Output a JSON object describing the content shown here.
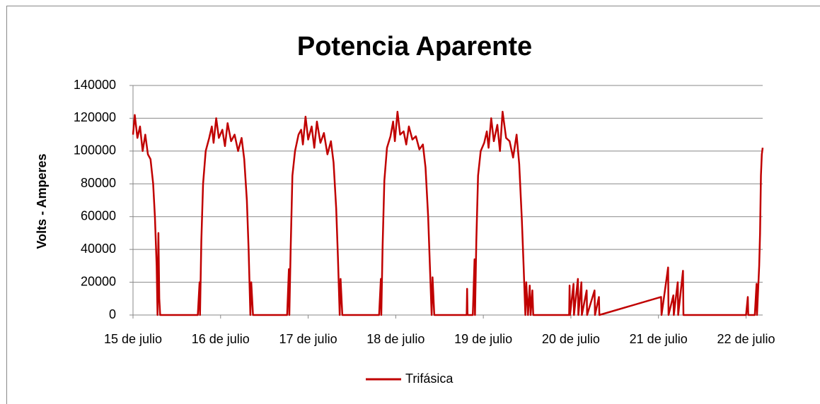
{
  "chart_data": {
    "type": "line",
    "title": "Potencia Aparente",
    "y_label": "Volts - Amperes",
    "x": [
      0,
      0.02,
      0.05,
      0.08,
      0.11,
      0.14,
      0.17,
      0.2,
      0.23,
      0.25,
      0.27,
      0.28,
      0.29,
      0.3,
      0.31,
      0.74,
      0.76,
      0.765,
      0.78,
      0.8,
      0.83,
      0.87,
      0.9,
      0.92,
      0.95,
      0.98,
      1.02,
      1.05,
      1.08,
      1.12,
      1.16,
      1.2,
      1.24,
      1.27,
      1.3,
      1.32,
      1.34,
      1.35,
      1.37,
      1.76,
      1.78,
      1.785,
      1.8,
      1.82,
      1.85,
      1.89,
      1.92,
      1.94,
      1.97,
      2,
      2.04,
      2.07,
      2.1,
      2.14,
      2.18,
      2.22,
      2.26,
      2.29,
      2.32,
      2.34,
      2.36,
      2.37,
      2.39,
      2.81,
      2.83,
      2.835,
      2.85,
      2.87,
      2.9,
      2.94,
      2.97,
      2.99,
      3.02,
      3.05,
      3.09,
      3.12,
      3.15,
      3.19,
      3.23,
      3.27,
      3.31,
      3.34,
      3.37,
      3.39,
      3.41,
      3.42,
      3.44,
      3.81,
      3.815,
      3.82,
      3.88,
      3.9,
      3.905,
      3.92,
      3.94,
      3.97,
      4.01,
      4.04,
      4.06,
      4.09,
      4.12,
      4.16,
      4.19,
      4.22,
      4.26,
      4.3,
      4.34,
      4.38,
      4.41,
      4.44,
      4.46,
      4.48,
      4.49,
      4.51,
      4.53,
      4.54,
      4.56,
      4.57,
      4.98,
      4.985,
      4.99,
      5.03,
      5.035,
      5.08,
      5.085,
      5.12,
      5.125,
      5.18,
      5.185,
      5.27,
      5.275,
      5.32,
      5.325,
      6.03,
      6.035,
      6.11,
      6.115,
      6.17,
      6.175,
      6.22,
      6.225,
      6.28,
      6.285,
      7,
      7.02,
      7.025,
      7.1,
      7.12,
      7.125,
      7.15,
      7.16,
      7.17,
      7.18,
      7.19
    ],
    "series": [
      {
        "name": "Trifásica",
        "color": "#c00000",
        "values": [
          110000,
          122000,
          108000,
          115000,
          100000,
          110000,
          98000,
          95000,
          80000,
          60000,
          30000,
          0,
          50000,
          10000,
          0,
          0,
          20000,
          0,
          45000,
          80000,
          100000,
          108000,
          115000,
          105000,
          120000,
          108000,
          113000,
          103000,
          117000,
          106000,
          110000,
          100000,
          108000,
          95000,
          70000,
          40000,
          0,
          20000,
          0,
          0,
          28000,
          0,
          40000,
          85000,
          100000,
          110000,
          113000,
          104000,
          121000,
          107000,
          115000,
          102000,
          118000,
          105000,
          111000,
          98000,
          106000,
          93000,
          65000,
          35000,
          0,
          22000,
          0,
          0,
          22000,
          0,
          42000,
          82000,
          102000,
          109000,
          118000,
          106000,
          124000,
          110000,
          112000,
          104000,
          115000,
          107000,
          109000,
          101000,
          104000,
          90000,
          60000,
          30000,
          0,
          23000,
          0,
          0,
          16000,
          0,
          0,
          34000,
          0,
          45000,
          85000,
          100000,
          105000,
          112000,
          102000,
          120000,
          106000,
          116000,
          100000,
          124000,
          108000,
          106000,
          96000,
          110000,
          92000,
          58000,
          30000,
          0,
          20000,
          0,
          18000,
          0,
          15000,
          0,
          0,
          18000,
          0,
          19000,
          0,
          22000,
          0,
          20000,
          0,
          15000,
          0,
          15000,
          0,
          11000,
          0,
          11000,
          0,
          29000,
          0,
          12000,
          0,
          20000,
          0,
          27000,
          0,
          0,
          11000,
          0,
          0,
          19000,
          0,
          30000,
          50000,
          85000,
          98000,
          102000
        ]
      }
    ],
    "xlim": [
      0,
      7.19
    ],
    "xticks": [
      {
        "value": 0,
        "label": "15 de julio"
      },
      {
        "value": 1,
        "label": "16 de julio"
      },
      {
        "value": 2,
        "label": "17 de julio"
      },
      {
        "value": 3,
        "label": "18 de julio"
      },
      {
        "value": 4,
        "label": "19 de julio"
      },
      {
        "value": 5,
        "label": "20 de julio"
      },
      {
        "value": 6,
        "label": "21 de julio"
      },
      {
        "value": 7,
        "label": "22 de julio"
      }
    ],
    "ylim": [
      0,
      140000
    ],
    "yticks": [
      0,
      20000,
      40000,
      60000,
      80000,
      100000,
      120000,
      140000
    ],
    "grid": true,
    "legend": "bottom"
  }
}
